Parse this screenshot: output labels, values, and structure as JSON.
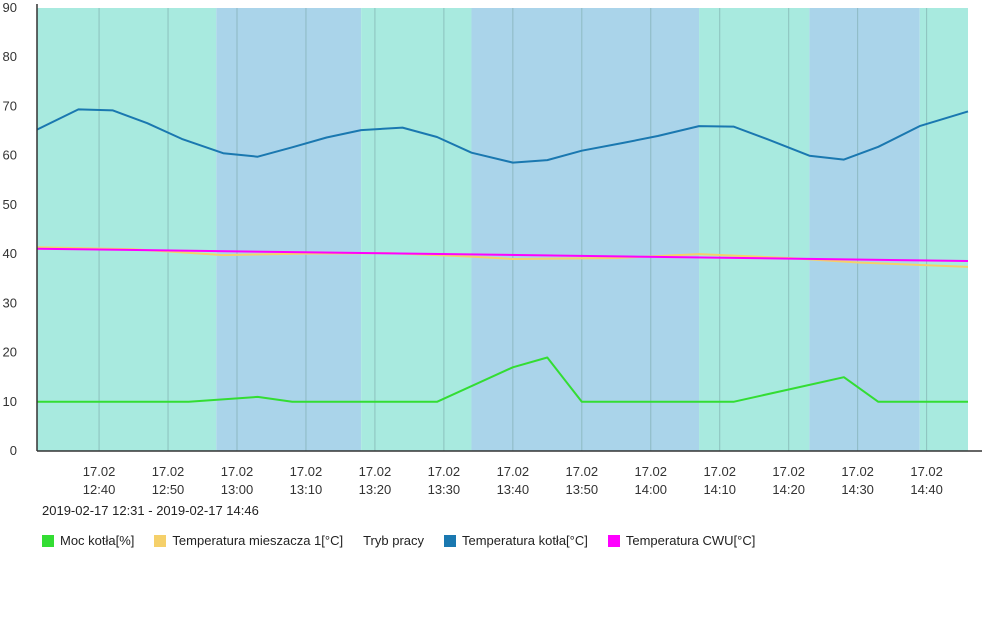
{
  "chart_data": {
    "type": "line",
    "date_range": "2019-02-17 12:31 - 2019-02-17 14:46",
    "x_axis": {
      "type": "time",
      "range": [
        "2019-02-17 12:31",
        "2019-02-17 14:46"
      ],
      "ticks": [
        {
          "time": "2019-02-17 12:40",
          "label_top": "17.02",
          "label_bottom": "12:40"
        },
        {
          "time": "2019-02-17 12:50",
          "label_top": "17.02",
          "label_bottom": "12:50"
        },
        {
          "time": "2019-02-17 13:00",
          "label_top": "17.02",
          "label_bottom": "13:00"
        },
        {
          "time": "2019-02-17 13:10",
          "label_top": "17.02",
          "label_bottom": "13:10"
        },
        {
          "time": "2019-02-17 13:20",
          "label_top": "17.02",
          "label_bottom": "13:20"
        },
        {
          "time": "2019-02-17 13:30",
          "label_top": "17.02",
          "label_bottom": "13:30"
        },
        {
          "time": "2019-02-17 13:40",
          "label_top": "17.02",
          "label_bottom": "13:40"
        },
        {
          "time": "2019-02-17 13:50",
          "label_top": "17.02",
          "label_bottom": "13:50"
        },
        {
          "time": "2019-02-17 14:00",
          "label_top": "17.02",
          "label_bottom": "14:00"
        },
        {
          "time": "2019-02-17 14:10",
          "label_top": "17.02",
          "label_bottom": "14:10"
        },
        {
          "time": "2019-02-17 14:20",
          "label_top": "17.02",
          "label_bottom": "14:20"
        },
        {
          "time": "2019-02-17 14:30",
          "label_top": "17.02",
          "label_bottom": "14:30"
        },
        {
          "time": "2019-02-17 14:40",
          "label_top": "17.02",
          "label_bottom": "14:40"
        }
      ],
      "grid": true
    },
    "y_axis": {
      "range": [
        0,
        90
      ],
      "ticks": [
        0,
        10,
        20,
        30,
        40,
        50,
        60,
        70,
        80,
        90
      ],
      "grid": false
    },
    "legend_position": "bottom-left",
    "background_bands": {
      "name": "Tryb pracy",
      "colors": {
        "green": "#a8eadf",
        "blue": "#aad4ea"
      },
      "bands": [
        {
          "start": "2019-02-17 12:31",
          "end": "2019-02-17 12:57",
          "color": "green"
        },
        {
          "start": "2019-02-17 12:57",
          "end": "2019-02-17 13:18",
          "color": "blue"
        },
        {
          "start": "2019-02-17 13:18",
          "end": "2019-02-17 13:34",
          "color": "green"
        },
        {
          "start": "2019-02-17 13:34",
          "end": "2019-02-17 14:07",
          "color": "blue"
        },
        {
          "start": "2019-02-17 14:07",
          "end": "2019-02-17 14:23",
          "color": "green"
        },
        {
          "start": "2019-02-17 14:23",
          "end": "2019-02-17 14:39",
          "color": "blue"
        },
        {
          "start": "2019-02-17 14:39",
          "end": "2019-02-17 14:46",
          "color": "green"
        }
      ]
    },
    "series": [
      {
        "name": "Temperatura kotła[°C]",
        "color": "#1a78b0",
        "points": [
          [
            "2019-02-17 12:31",
            65.3
          ],
          [
            "2019-02-17 12:37",
            69.4
          ],
          [
            "2019-02-17 12:42",
            69.2
          ],
          [
            "2019-02-17 12:47",
            66.6
          ],
          [
            "2019-02-17 12:52",
            63.4
          ],
          [
            "2019-02-17 12:58",
            60.5
          ],
          [
            "2019-02-17 13:03",
            59.8
          ],
          [
            "2019-02-17 13:08",
            61.7
          ],
          [
            "2019-02-17 13:13",
            63.7
          ],
          [
            "2019-02-17 13:18",
            65.2
          ],
          [
            "2019-02-17 13:24",
            65.7
          ],
          [
            "2019-02-17 13:29",
            63.8
          ],
          [
            "2019-02-17 13:34",
            60.6
          ],
          [
            "2019-02-17 13:40",
            58.6
          ],
          [
            "2019-02-17 13:45",
            59.1
          ],
          [
            "2019-02-17 13:50",
            61.0
          ],
          [
            "2019-02-17 13:56",
            62.6
          ],
          [
            "2019-02-17 14:01",
            64.0
          ],
          [
            "2019-02-17 14:07",
            66.0
          ],
          [
            "2019-02-17 14:12",
            65.9
          ],
          [
            "2019-02-17 14:17",
            63.3
          ],
          [
            "2019-02-17 14:23",
            60.0
          ],
          [
            "2019-02-17 14:28",
            59.2
          ],
          [
            "2019-02-17 14:33",
            61.8
          ],
          [
            "2019-02-17 14:39",
            66.0
          ],
          [
            "2019-02-17 14:46",
            69.0
          ]
        ]
      },
      {
        "name": "Temperatura mieszacza 1[°C]",
        "color": "#f5d06a",
        "points": [
          [
            "2019-02-17 12:31",
            41.4
          ],
          [
            "2019-02-17 12:45",
            41.0
          ],
          [
            "2019-02-17 12:58",
            39.8
          ],
          [
            "2019-02-17 13:10",
            40.1
          ],
          [
            "2019-02-17 13:22",
            40.2
          ],
          [
            "2019-02-17 13:34",
            39.5
          ],
          [
            "2019-02-17 13:40",
            39.0
          ],
          [
            "2019-02-17 13:55",
            39.2
          ],
          [
            "2019-02-17 14:07",
            40.0
          ],
          [
            "2019-02-17 14:20",
            39.2
          ],
          [
            "2019-02-17 14:30",
            38.3
          ],
          [
            "2019-02-17 14:46",
            37.4
          ]
        ]
      },
      {
        "name": "Temperatura CWU[°C]",
        "color": "#ff00ff",
        "points": [
          [
            "2019-02-17 12:31",
            41.1
          ],
          [
            "2019-02-17 14:46",
            38.6
          ]
        ]
      },
      {
        "name": "Moc kotła[%]",
        "color": "#33dd33",
        "points": [
          [
            "2019-02-17 12:31",
            10
          ],
          [
            "2019-02-17 12:53",
            10
          ],
          [
            "2019-02-17 13:03",
            11
          ],
          [
            "2019-02-17 13:08",
            10
          ],
          [
            "2019-02-17 13:29",
            10
          ],
          [
            "2019-02-17 13:40",
            17
          ],
          [
            "2019-02-17 13:45",
            19
          ],
          [
            "2019-02-17 13:50",
            10
          ],
          [
            "2019-02-17 14:12",
            10
          ],
          [
            "2019-02-17 14:28",
            15
          ],
          [
            "2019-02-17 14:33",
            10
          ],
          [
            "2019-02-17 14:46",
            10
          ]
        ]
      }
    ],
    "legend": [
      {
        "label": "Moc kotła[%]",
        "color": "#33dd33",
        "icon": "square-swatch"
      },
      {
        "label": "Temperatura mieszacza 1[°C]",
        "color": "#f5d06a",
        "icon": "square-swatch"
      },
      {
        "label": "Tryb pracy",
        "color": "",
        "icon": "none"
      },
      {
        "label": "Temperatura kotła[°C]",
        "color": "#1a78b0",
        "icon": "square-swatch"
      },
      {
        "label": "Temperatura CWU[°C]",
        "color": "#ff00ff",
        "icon": "square-swatch"
      }
    ]
  }
}
